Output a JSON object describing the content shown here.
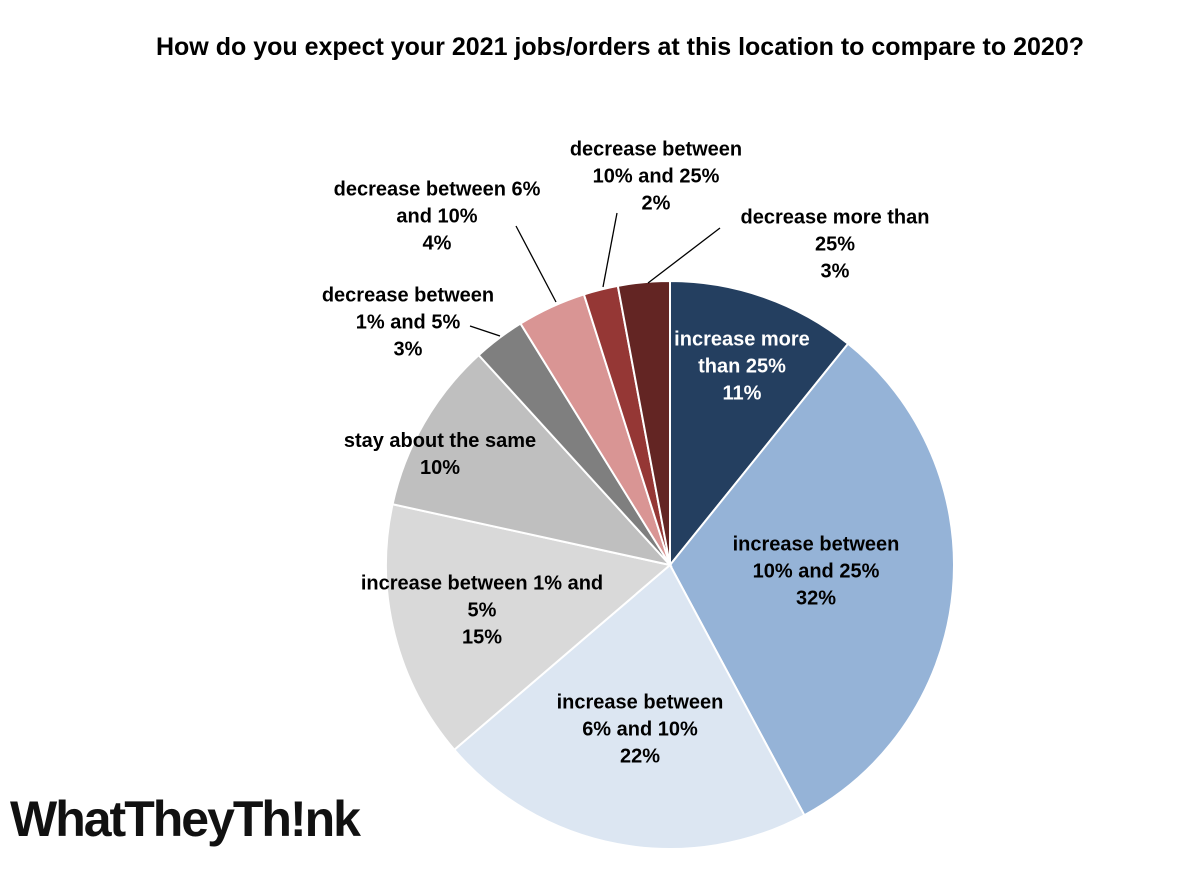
{
  "chart_data": {
    "type": "pie",
    "title": "How do you expect your 2021 jobs/orders at this location to compare to 2020?",
    "categories": [
      "increase more than 25%",
      "increase between 10% and 25%",
      "increase between 6% and 10%",
      "increase between 1% and 5%",
      "stay about the same",
      "decrease between 1% and 5%",
      "decrease between 6% and 10%",
      "decrease between 10% and 25%",
      "decrease more than 25%"
    ],
    "values": [
      11,
      32,
      22,
      15,
      10,
      3,
      4,
      2,
      3
    ],
    "value_labels": [
      "11%",
      "32%",
      "22%",
      "15%",
      "10%",
      "3%",
      "4%",
      "2%",
      "3%"
    ],
    "colors": [
      "#243f60",
      "#95b3d7",
      "#dce6f2",
      "#d9d9d9",
      "#bfbfbf",
      "#7f7f7f",
      "#d99594",
      "#953735",
      "#632523"
    ]
  },
  "logo": "WhatTheyTh!nk"
}
